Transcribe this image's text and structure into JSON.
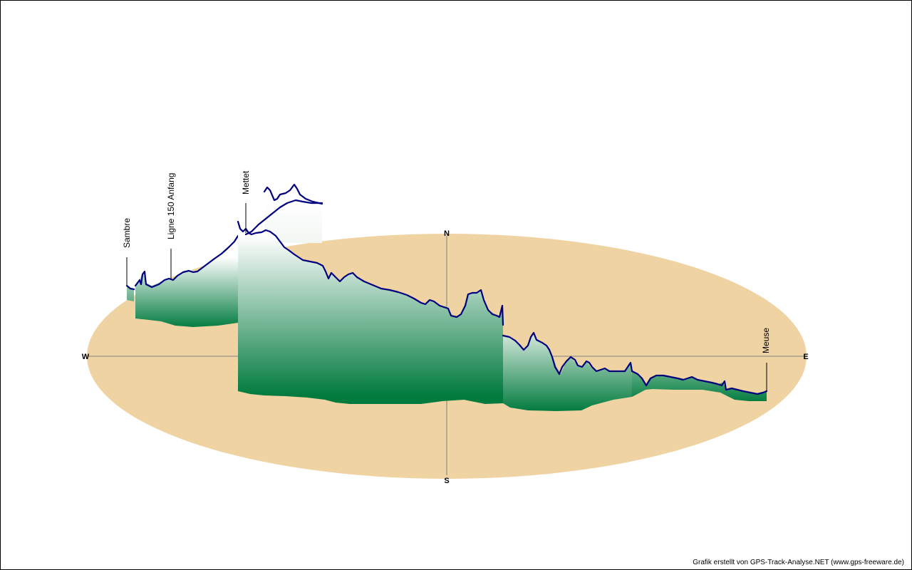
{
  "colors": {
    "ground": "#efd3a3",
    "axis": "#808080",
    "profile_line": "#00007f",
    "fill_top": "#ffffff",
    "fill_bottom": "#007a3d",
    "waypoint_line": "#000000"
  },
  "compass": {
    "north": "N",
    "south": "S",
    "east": "E",
    "west": "W"
  },
  "waypoints": [
    {
      "name": "Sambre"
    },
    {
      "name": "Ligne 150 Anfang"
    },
    {
      "name": "Mettet"
    },
    {
      "name": "Meuse"
    }
  ],
  "credit": "Grafik erstellt von GPS-Track-Analyse.NET (www.gps-freeware.de)"
}
